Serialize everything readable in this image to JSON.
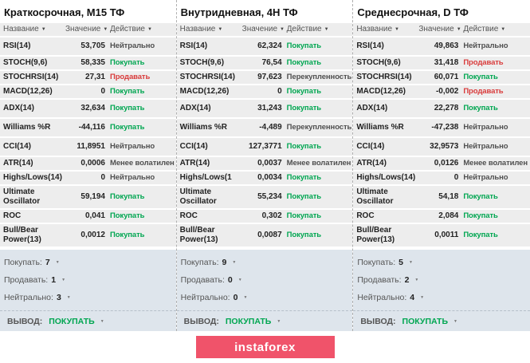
{
  "colors": {
    "buy": "#00a651",
    "sell": "#d93b3b",
    "neutral_text": "#4f4f4f",
    "row_bg": "#ededed",
    "summary_bg": "#dee5ec",
    "logo_bg": "#f0536a"
  },
  "sort_arrow": "▼",
  "logo": {
    "text": "instaforex"
  },
  "columns": [
    {
      "title": "Краткосрочная, M15 ТФ",
      "headers": {
        "name": "Название",
        "value": "Значение",
        "action": "Действие"
      },
      "rows": [
        {
          "name": "RSI(14)",
          "value": "53,705",
          "action": "Нейтрально",
          "type": "neutral"
        },
        {
          "name": "STOCH(9,6)",
          "value": "58,335",
          "action": "Покупать",
          "type": "buy"
        },
        {
          "name": "STOCHRSI(14)",
          "value": "27,31",
          "action": "Продавать",
          "type": "sell"
        },
        {
          "name": "MACD(12,26)",
          "value": "0",
          "action": "Покупать",
          "type": "buy"
        },
        {
          "name": "ADX(14)",
          "value": "32,634",
          "action": "Покупать",
          "type": "buy"
        },
        {
          "name": "Williams %R",
          "value": "-44,116",
          "action": "Покупать",
          "type": "buy"
        },
        {
          "name": "CCI(14)",
          "value": "11,8951",
          "action": "Нейтрально",
          "type": "neutral"
        },
        {
          "name": "ATR(14)",
          "value": "0,0006",
          "action": "Менее волатилен",
          "type": "less-volatile"
        },
        {
          "name": "Highs/Lows(14)",
          "value": "0",
          "action": "Нейтрально",
          "type": "neutral"
        },
        {
          "name": "Ultimate Oscillator",
          "value": "59,194",
          "action": "Покупать",
          "type": "buy"
        },
        {
          "name": "ROC",
          "value": "0,041",
          "action": "Покупать",
          "type": "buy"
        },
        {
          "name": "Bull/Bear Power(13)",
          "value": "0,0012",
          "action": "Покупать",
          "type": "buy"
        }
      ],
      "summary": [
        {
          "label": "Покупать:",
          "value": "7"
        },
        {
          "label": "Продавать:",
          "value": "1"
        },
        {
          "label": "Нейтрально:",
          "value": "3"
        }
      ],
      "verdict_label": "ВЫВОД:",
      "verdict": "ПОКУПАТЬ"
    },
    {
      "title": "Внутридневная, 4H ТФ",
      "headers": {
        "name": "Название",
        "value": "Значение",
        "action": "Действие"
      },
      "rows": [
        {
          "name": "RSI(14)",
          "value": "62,324",
          "action": "Покупать",
          "type": "buy"
        },
        {
          "name": "STOCH(9,6)",
          "value": "76,54",
          "action": "Покупать",
          "type": "buy"
        },
        {
          "name": "STOCHRSI(14)",
          "value": "97,623",
          "action": "Перекупленность",
          "type": "overbought"
        },
        {
          "name": "MACD(12,26)",
          "value": "0",
          "action": "Покупать",
          "type": "buy"
        },
        {
          "name": "ADX(14)",
          "value": "31,243",
          "action": "Покупать",
          "type": "buy"
        },
        {
          "name": "Williams %R",
          "value": "-4,489",
          "action": "Перекупленность",
          "type": "overbought"
        },
        {
          "name": "CCI(14)",
          "value": "127,3771",
          "action": "Покупать",
          "type": "buy"
        },
        {
          "name": "ATR(14)",
          "value": "0,0037",
          "action": "Менее волатилен",
          "type": "less-volatile"
        },
        {
          "name": "Highs/Lows(1",
          "value": "0,0034",
          "action": "Покупать",
          "type": "buy"
        },
        {
          "name": "Ultimate Oscillator",
          "value": "55,234",
          "action": "Покупать",
          "type": "buy"
        },
        {
          "name": "ROC",
          "value": "0,302",
          "action": "Покупать",
          "type": "buy"
        },
        {
          "name": "Bull/Bear Power(13)",
          "value": "0,0087",
          "action": "Покупать",
          "type": "buy"
        }
      ],
      "summary": [
        {
          "label": "Покупать:",
          "value": "9"
        },
        {
          "label": "Продавать:",
          "value": "0"
        },
        {
          "label": "Нейтрально:",
          "value": "0"
        }
      ],
      "verdict_label": "ВЫВОД:",
      "verdict": "ПОКУПАТЬ"
    },
    {
      "title": "Среднесрочная, D ТФ",
      "headers": {
        "name": "Название",
        "value": "Значение",
        "action": "Действие"
      },
      "rows": [
        {
          "name": "RSI(14)",
          "value": "49,863",
          "action": "Нейтрально",
          "type": "neutral"
        },
        {
          "name": "STOCH(9,6)",
          "value": "31,418",
          "action": "Продавать",
          "type": "sell"
        },
        {
          "name": "STOCHRSI(14)",
          "value": "60,071",
          "action": "Покупать",
          "type": "buy"
        },
        {
          "name": "MACD(12,26)",
          "value": "-0,002",
          "action": "Продавать",
          "type": "sell"
        },
        {
          "name": "ADX(14)",
          "value": "22,278",
          "action": "Покупать",
          "type": "buy"
        },
        {
          "name": "Williams %R",
          "value": "-47,238",
          "action": "Нейтрально",
          "type": "neutral"
        },
        {
          "name": "CCI(14)",
          "value": "32,9573",
          "action": "Нейтрально",
          "type": "neutral"
        },
        {
          "name": "ATR(14)",
          "value": "0,0126",
          "action": "Менее волатилен",
          "type": "less-volatile"
        },
        {
          "name": "Highs/Lows(14)",
          "value": "0",
          "action": "Нейтрально",
          "type": "neutral"
        },
        {
          "name": "Ultimate Oscillator",
          "value": "54,18",
          "action": "Покупать",
          "type": "buy"
        },
        {
          "name": "ROC",
          "value": "2,084",
          "action": "Покупать",
          "type": "buy"
        },
        {
          "name": "Bull/Bear Power(13)",
          "value": "0,0011",
          "action": "Покупать",
          "type": "buy"
        }
      ],
      "summary": [
        {
          "label": "Покупать:",
          "value": "5"
        },
        {
          "label": "Продавать:",
          "value": "2"
        },
        {
          "label": "Нейтрально:",
          "value": "4"
        }
      ],
      "verdict_label": "ВЫВОД:",
      "verdict": "ПОКУПАТЬ"
    }
  ]
}
